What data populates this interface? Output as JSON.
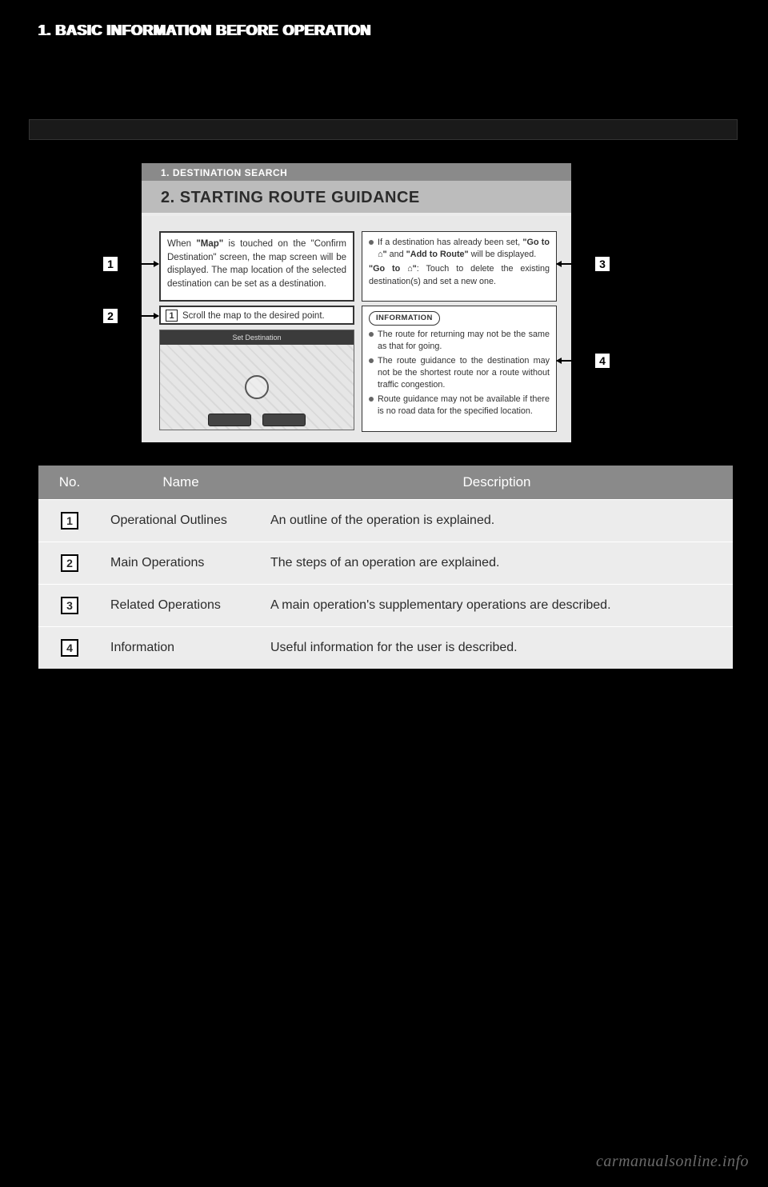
{
  "header": {
    "section": "1. BASIC INFORMATION BEFORE OPERATION"
  },
  "panel": {
    "subheader": "1. DESTINATION SEARCH",
    "title": "2. STARTING ROUTE GUIDANCE",
    "box1_html": "When <b>\"Map\"</b> is touched on the \"Confirm Destination\" screen, the map screen will be displayed. The map location of the selected destination can be set as a destination.",
    "box2_step": "1",
    "box2_text": "Scroll the map to the desired point.",
    "map_title": "Set Destination",
    "box3_bullet_html": "If a destination has already been set, <b>\"Go to ⌂\"</b> and <b>\"Add to Route\"</b> will be displayed.",
    "box3_line2_html": "<b>\"Go to ⌂\"</b>: Touch to delete the existing destination(s) and set a new one.",
    "box4_label": "INFORMATION",
    "box4_items": [
      "The route for returning may not be the same as that for going.",
      "The route guidance to the destination may not be the shortest route nor a route without traffic congestion.",
      "Route guidance may not be available if there is no road data for the specified location."
    ]
  },
  "markers": {
    "m1": "1",
    "m2": "2",
    "m3": "3",
    "m4": "4"
  },
  "table": {
    "headers": {
      "no": "No.",
      "name": "Name",
      "desc": "Description"
    },
    "rows": [
      {
        "num": "1",
        "name": "Operational Outlines",
        "desc": "An outline of the operation is explained."
      },
      {
        "num": "2",
        "name": "Main Operations",
        "desc": "The steps of an operation are explained."
      },
      {
        "num": "3",
        "name": "Related Operations",
        "desc": "A main operation's supplementary operations are described."
      },
      {
        "num": "4",
        "name": "Information",
        "desc": "Useful information for the user is described."
      }
    ]
  },
  "watermark": "carmanualsonline.info",
  "colors": {
    "page_bg": "#000000",
    "panel_bg": "#ececec",
    "subheader_bg": "#8a8a8a",
    "title_bg": "#bcbcbc",
    "table_header_bg": "#8a8a8a",
    "table_body_bg": "#ececec",
    "text": "#2b2b2b"
  }
}
